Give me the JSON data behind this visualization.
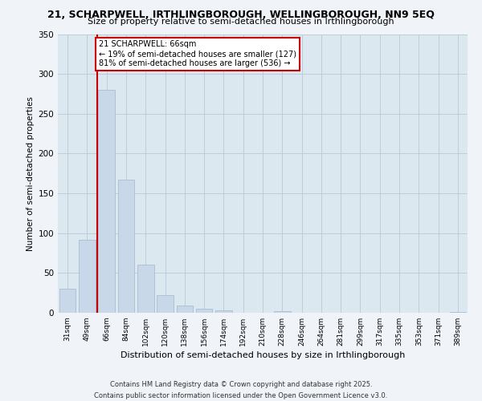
{
  "title": "21, SCHARPWELL, IRTHLINGBOROUGH, WELLINGBOROUGH, NN9 5EQ",
  "subtitle": "Size of property relative to semi-detached houses in Irthlingborough",
  "xlabel": "Distribution of semi-detached houses by size in Irthlingborough",
  "ylabel": "Number of semi-detached properties",
  "categories": [
    "31sqm",
    "49sqm",
    "66sqm",
    "84sqm",
    "102sqm",
    "120sqm",
    "138sqm",
    "156sqm",
    "174sqm",
    "192sqm",
    "210sqm",
    "228sqm",
    "246sqm",
    "264sqm",
    "281sqm",
    "299sqm",
    "317sqm",
    "335sqm",
    "353sqm",
    "371sqm",
    "389sqm"
  ],
  "values": [
    30,
    92,
    280,
    167,
    60,
    22,
    9,
    5,
    3,
    0,
    0,
    2,
    0,
    0,
    0,
    0,
    0,
    0,
    0,
    0,
    1
  ],
  "bar_color": "#c8d8e8",
  "bar_edge_color": "#a0b8cc",
  "highlight_index": 2,
  "highlight_line_color": "#cc0000",
  "annotation_text": "21 SCHARPWELL: 66sqm\n← 19% of semi-detached houses are smaller (127)\n81% of semi-detached houses are larger (536) →",
  "annotation_box_color": "#ffffff",
  "annotation_box_edge": "#cc0000",
  "ylim": [
    0,
    350
  ],
  "yticks": [
    0,
    50,
    100,
    150,
    200,
    250,
    300,
    350
  ],
  "background_color": "#dce8f0",
  "footer_text": "Contains HM Land Registry data © Crown copyright and database right 2025.\nContains public sector information licensed under the Open Government Licence v3.0.",
  "grid_color": "#b8c8d8",
  "fig_bg": "#f0f4f8"
}
